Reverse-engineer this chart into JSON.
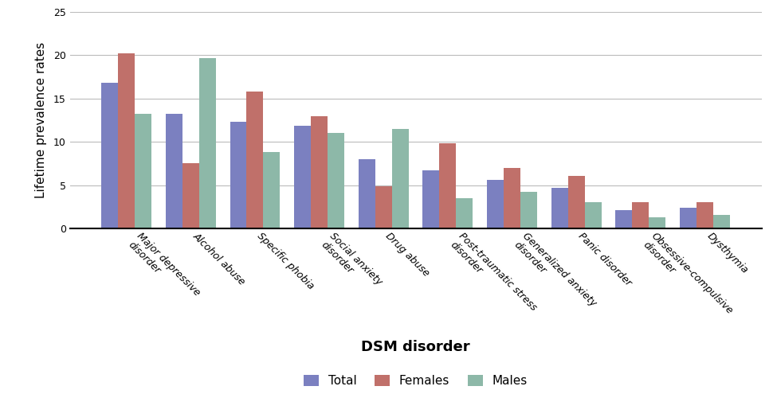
{
  "categories": [
    "Major depressive\ndisorder",
    "Alcohol abuse",
    "Specific phobia",
    "Social anxiety\ndisorder",
    "Drug abuse",
    "Post-traumatic stress\ndisorder",
    "Generalized anxiety\ndisorder",
    "Panic disorder",
    "Obsessive-compulsive\ndisorder",
    "Dysthymia"
  ],
  "total": [
    16.8,
    13.2,
    12.3,
    11.9,
    8.0,
    6.7,
    5.6,
    4.7,
    2.1,
    2.4
  ],
  "females": [
    20.2,
    7.5,
    15.8,
    13.0,
    4.9,
    9.8,
    7.0,
    6.1,
    3.0,
    3.0
  ],
  "males": [
    13.2,
    19.7,
    8.8,
    11.0,
    11.5,
    3.5,
    4.2,
    3.0,
    1.3,
    1.6
  ],
  "bar_colors": {
    "Total": "#7b80c0",
    "Females": "#c0706a",
    "Males": "#8db8a8"
  },
  "xlabel": "DSM disorder",
  "ylabel": "Lifetime prevalence rates",
  "ylim": [
    0,
    25
  ],
  "yticks": [
    0,
    5,
    10,
    15,
    20,
    25
  ],
  "legend_labels": [
    "Total",
    "Females",
    "Males"
  ],
  "background_color": "#ffffff",
  "grid_color": "#bbbbbb",
  "xlabel_fontsize": 13,
  "ylabel_fontsize": 11,
  "tick_fontsize": 9,
  "legend_fontsize": 11,
  "bar_width": 0.26
}
